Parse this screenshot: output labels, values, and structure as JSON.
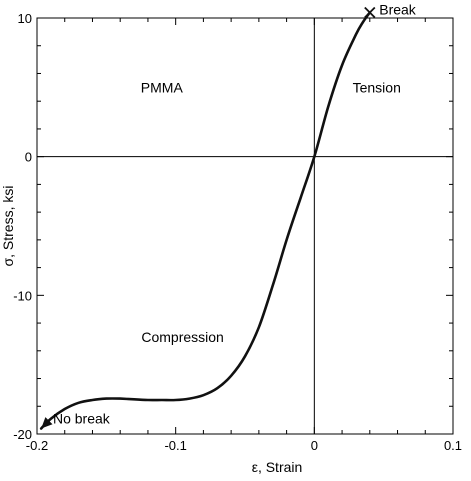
{
  "chart_data": {
    "type": "line",
    "xlabel": "ε, Strain",
    "ylabel": "σ, Stress, ksi",
    "xlim": [
      -0.2,
      0.1
    ],
    "ylim": [
      -20,
      10
    ],
    "x_ticks": [
      -0.2,
      -0.1,
      0,
      0.1
    ],
    "x_tick_labels": [
      "-0.2",
      "-0.1",
      "0",
      "0.1"
    ],
    "y_ticks": [
      -20,
      -10,
      0,
      10
    ],
    "y_tick_labels": [
      "-20",
      "-10",
      "0",
      "10"
    ],
    "grid": false,
    "reference_lines": {
      "x": 0,
      "y": 0
    },
    "series": [
      {
        "points": [
          [
            -0.197,
            -19.6
          ],
          [
            -0.19,
            -18.9
          ],
          [
            -0.18,
            -18.2
          ],
          [
            -0.17,
            -17.75
          ],
          [
            -0.16,
            -17.55
          ],
          [
            -0.15,
            -17.45
          ],
          [
            -0.14,
            -17.45
          ],
          [
            -0.13,
            -17.5
          ],
          [
            -0.12,
            -17.55
          ],
          [
            -0.11,
            -17.55
          ],
          [
            -0.1,
            -17.55
          ],
          [
            -0.09,
            -17.45
          ],
          [
            -0.08,
            -17.2
          ],
          [
            -0.07,
            -16.7
          ],
          [
            -0.06,
            -15.8
          ],
          [
            -0.05,
            -14.4
          ],
          [
            -0.04,
            -12.3
          ],
          [
            -0.03,
            -9.3
          ],
          [
            -0.02,
            -6.0
          ],
          [
            -0.01,
            -3.0
          ],
          [
            0.0,
            0.0
          ],
          [
            0.01,
            3.6
          ],
          [
            0.02,
            6.6
          ],
          [
            0.03,
            8.8
          ],
          [
            0.035,
            9.7
          ],
          [
            0.04,
            10.4
          ]
        ]
      }
    ],
    "annotations": [
      {
        "text": "PMMA",
        "x": -0.11,
        "y": 5
      },
      {
        "text": "Tension",
        "x": 0.045,
        "y": 5
      },
      {
        "text": "Compression",
        "x": -0.095,
        "y": -13
      },
      {
        "text": "No break",
        "x": -0.168,
        "y": -18.9
      },
      {
        "text": "Break",
        "x": 0.06,
        "y": 10.6
      }
    ],
    "markers": [
      {
        "type": "x",
        "x": 0.04,
        "y": 10.4,
        "label": "Break"
      },
      {
        "type": "arrow",
        "x": -0.197,
        "y": -19.6,
        "label": "No break"
      }
    ]
  }
}
